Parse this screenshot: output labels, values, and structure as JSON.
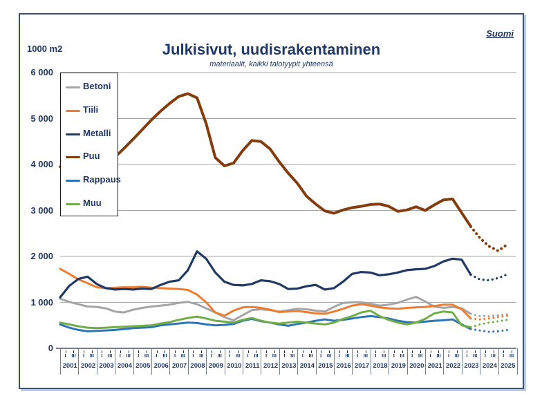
{
  "header": {
    "region": "Suomi",
    "unit_label": "1000 m2"
  },
  "chart_data": {
    "type": "line",
    "title": "Julkisivut, uudisrakentaminen",
    "subtitle": "materiaalit, kaikki talotyypit yhteensä",
    "ylabel": "1000 m2",
    "ylim": [
      0,
      6000
    ],
    "ytick_step": 1000,
    "ytick_labels": [
      "0",
      "1 000",
      "2 000",
      "3 000",
      "4 000",
      "5 000",
      "6 000"
    ],
    "grid": "horizontal",
    "legend_position": "top-left-inside",
    "years": [
      2001,
      2002,
      2003,
      2004,
      2005,
      2006,
      2007,
      2008,
      2009,
      2010,
      2011,
      2012,
      2013,
      2014,
      2015,
      2016,
      2017,
      2018,
      2019,
      2020,
      2021,
      2022,
      2023,
      2024,
      2025
    ],
    "quarter_tick_labels": [
      "I",
      "III"
    ],
    "x_unit": "half-year (quarters I and III of each year)",
    "x_start": 2001.0,
    "x_step": 0.5,
    "n_points": 50,
    "forecast_start_index": 45,
    "forecast_style": "dotted",
    "series": [
      {
        "name": "Betoni",
        "color": "#a5a5a5",
        "line_width": 3,
        "values": [
          1080,
          1010,
          960,
          910,
          900,
          870,
          800,
          780,
          840,
          880,
          910,
          930,
          950,
          990,
          1010,
          960,
          870,
          780,
          680,
          610,
          720,
          830,
          850,
          830,
          800,
          830,
          860,
          850,
          820,
          800,
          900,
          990,
          1000,
          1000,
          970,
          930,
          950,
          990,
          1060,
          1120,
          1020,
          910,
          880,
          900,
          870,
          750,
          700,
          700,
          720,
          740
        ]
      },
      {
        "name": "Tiili",
        "color": "#ed7d31",
        "line_width": 3,
        "values": [
          1730,
          1620,
          1500,
          1420,
          1330,
          1310,
          1320,
          1330,
          1330,
          1340,
          1320,
          1310,
          1300,
          1290,
          1270,
          1170,
          1000,
          780,
          710,
          820,
          890,
          900,
          880,
          840,
          790,
          800,
          810,
          790,
          760,
          750,
          800,
          860,
          930,
          960,
          930,
          890,
          870,
          860,
          880,
          890,
          900,
          920,
          950,
          950,
          850,
          650,
          630,
          650,
          680,
          710
        ]
      },
      {
        "name": "Metalli",
        "color": "#203864",
        "line_width": 3.2,
        "values": [
          1110,
          1360,
          1510,
          1560,
          1400,
          1310,
          1280,
          1290,
          1280,
          1300,
          1290,
          1380,
          1450,
          1480,
          1700,
          2110,
          1950,
          1650,
          1450,
          1380,
          1370,
          1400,
          1480,
          1460,
          1400,
          1290,
          1300,
          1350,
          1380,
          1280,
          1310,
          1450,
          1620,
          1660,
          1650,
          1590,
          1610,
          1650,
          1700,
          1720,
          1730,
          1790,
          1890,
          1950,
          1930,
          1600,
          1500,
          1480,
          1530,
          1610
        ]
      },
      {
        "name": "Puu",
        "color": "#833c0c",
        "line_width": 4,
        "values": [
          3950,
          3990,
          4030,
          4070,
          4100,
          4130,
          4160,
          4350,
          4550,
          4760,
          4970,
          5160,
          5330,
          5480,
          5540,
          5450,
          4890,
          4150,
          3970,
          4030,
          4300,
          4520,
          4500,
          4340,
          4060,
          3810,
          3590,
          3310,
          3140,
          2990,
          2940,
          3010,
          3060,
          3090,
          3130,
          3140,
          3090,
          2980,
          3010,
          3080,
          3000,
          3120,
          3230,
          3250,
          2950,
          2650,
          2400,
          2220,
          2120,
          2260
        ]
      },
      {
        "name": "Rappaus",
        "color": "#2e75b6",
        "line_width": 3,
        "values": [
          520,
          450,
          400,
          370,
          380,
          390,
          400,
          420,
          440,
          450,
          460,
          500,
          520,
          540,
          560,
          550,
          520,
          500,
          510,
          530,
          600,
          640,
          590,
          560,
          520,
          490,
          530,
          560,
          600,
          630,
          600,
          620,
          650,
          680,
          700,
          680,
          650,
          600,
          570,
          560,
          580,
          600,
          610,
          630,
          520,
          420,
          390,
          360,
          370,
          400
        ]
      },
      {
        "name": "Muu",
        "color": "#70ad47",
        "line_width": 3,
        "values": [
          560,
          520,
          480,
          450,
          440,
          450,
          460,
          470,
          480,
          490,
          500,
          540,
          570,
          620,
          660,
          690,
          650,
          600,
          580,
          560,
          620,
          660,
          600,
          560,
          540,
          560,
          580,
          560,
          540,
          520,
          560,
          640,
          700,
          780,
          820,
          700,
          620,
          560,
          520,
          560,
          640,
          760,
          800,
          780,
          500,
          460,
          520,
          560,
          590,
          620
        ]
      }
    ],
    "colors": {
      "text": "#1f3864",
      "gridline": "#a6a6a6",
      "axis": "#44546a",
      "figure_border": "#3a5275"
    }
  }
}
